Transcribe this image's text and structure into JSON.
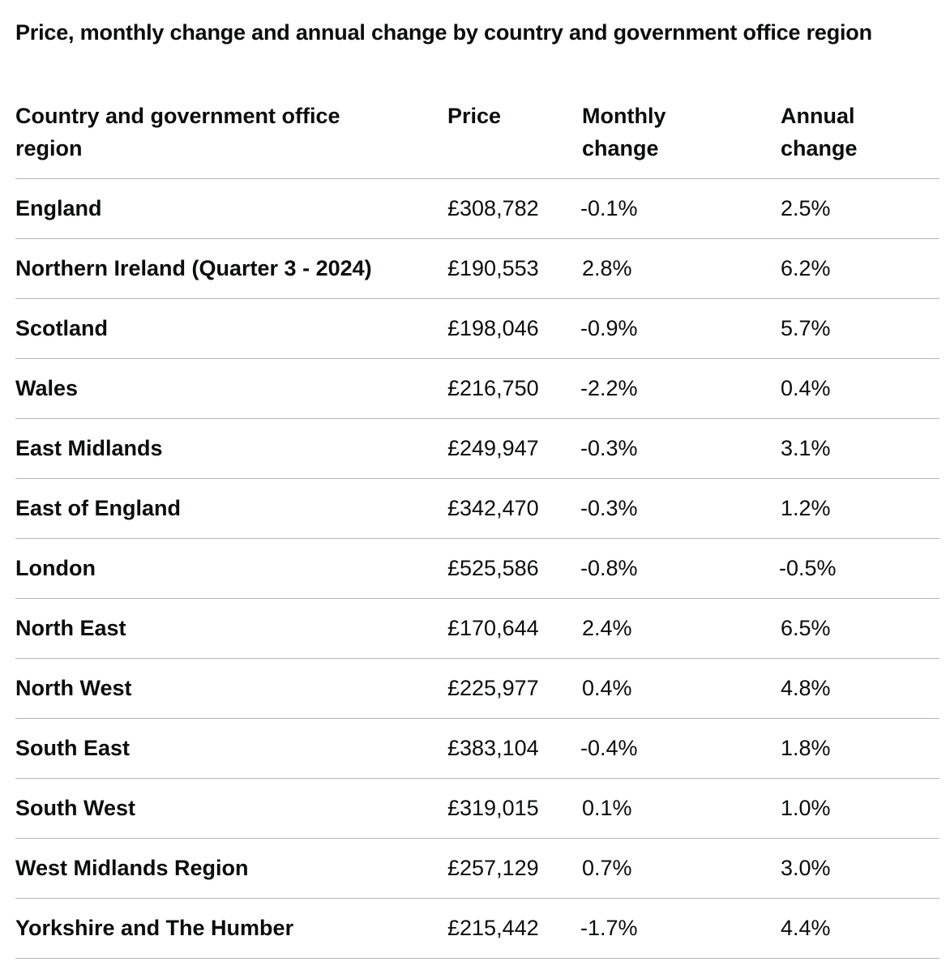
{
  "caption": "Price, monthly change and annual change by country and government office region",
  "headers": {
    "region": "Country and government office region",
    "price": "Price",
    "monthly": "Monthly change",
    "annual": "Annual change"
  },
  "rows": [
    {
      "region": "England",
      "price": "£308,782",
      "monthly": "-0.1%",
      "annual": "2.5%"
    },
    {
      "region": "Northern Ireland (Quarter 3 - 2024)",
      "price": "£190,553",
      "monthly": "2.8%",
      "annual": "6.2%"
    },
    {
      "region": "Scotland",
      "price": "£198,046",
      "monthly": "-0.9%",
      "annual": "5.7%"
    },
    {
      "region": "Wales",
      "price": "£216,750",
      "monthly": "-2.2%",
      "annual": "0.4%"
    },
    {
      "region": "East Midlands",
      "price": "£249,947",
      "monthly": "-0.3%",
      "annual": "3.1%"
    },
    {
      "region": "East of England",
      "price": "£342,470",
      "monthly": "-0.3%",
      "annual": "1.2%"
    },
    {
      "region": "London",
      "price": "£525,586",
      "monthly": "-0.8%",
      "annual": "-0.5%"
    },
    {
      "region": "North East",
      "price": "£170,644",
      "monthly": "2.4%",
      "annual": "6.5%"
    },
    {
      "region": "North West",
      "price": "£225,977",
      "monthly": "0.4%",
      "annual": "4.8%"
    },
    {
      "region": "South East",
      "price": "£383,104",
      "monthly": "-0.4%",
      "annual": "1.8%"
    },
    {
      "region": "South West",
      "price": "£319,015",
      "monthly": "0.1%",
      "annual": "1.0%"
    },
    {
      "region": "West Midlands Region",
      "price": "£257,129",
      "monthly": "0.7%",
      "annual": "3.0%"
    },
    {
      "region": "Yorkshire and The Humber",
      "price": "£215,442",
      "monthly": "-1.7%",
      "annual": "4.4%"
    }
  ]
}
